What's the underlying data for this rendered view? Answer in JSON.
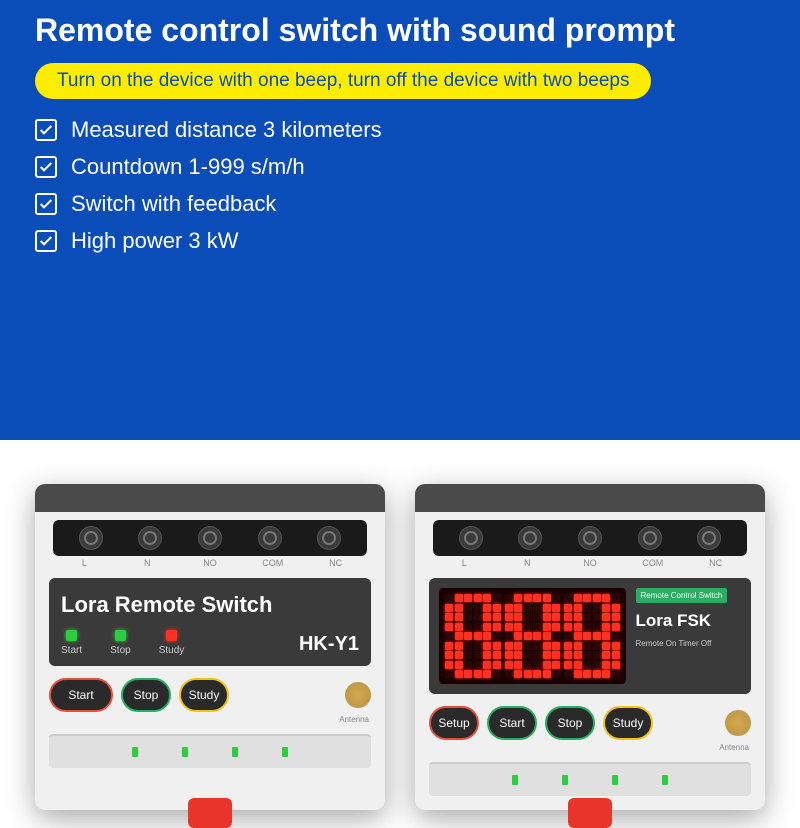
{
  "title": "Remote control switch with sound prompt",
  "subtitle": "Turn on the device with one beep, turn off the device with two beeps",
  "features": [
    "Measured distance 3 kilometers",
    "Countdown 1-999 s/m/h",
    "Switch with feedback",
    "High power 3 kW"
  ],
  "colors": {
    "bg_blue": "#0a4db8",
    "accent_yellow": "#ffed00",
    "led_green": "#2ecc40",
    "led_red": "#ff3020"
  },
  "deviceA": {
    "terminal_labels": [
      "L",
      "N",
      "NO",
      "COM",
      "NC"
    ],
    "title": "Lora Remote Switch",
    "model": "HK-Y1",
    "leds": [
      {
        "label": "Start",
        "color": "g"
      },
      {
        "label": "Stop",
        "color": "g"
      },
      {
        "label": "Study",
        "color": "r"
      }
    ],
    "buttons": [
      {
        "label": "Start",
        "cls": "b-red b-lg"
      },
      {
        "label": "Stop",
        "cls": "b-grn b-sm"
      },
      {
        "label": "Study",
        "cls": "b-ylw b-sm"
      }
    ],
    "antenna_label": "Antenna"
  },
  "deviceB": {
    "terminal_labels": [
      "L",
      "N",
      "NO",
      "COM",
      "NC"
    ],
    "badge": "Remote Control Switch",
    "brand": "Lora FSK",
    "mode": "Remote On Timer Off",
    "display_digits": [
      "8",
      "8",
      "8"
    ],
    "buttons": [
      {
        "label": "Setup",
        "cls": "b-red b-sm"
      },
      {
        "label": "Start",
        "cls": "b-grn b-sm"
      },
      {
        "label": "Stop",
        "cls": "b-grn b-sm"
      },
      {
        "label": "Study",
        "cls": "b-ylw b-sm"
      }
    ],
    "antenna_label": "Antenna"
  }
}
